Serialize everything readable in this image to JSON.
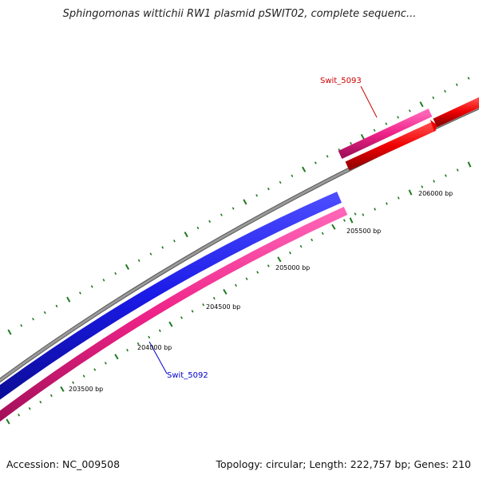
{
  "title": "Sphingomonas wittichii RW1 plasmid pSWIT02, complete sequenc...",
  "footer": {
    "accession": "Accession: NC_009508",
    "summary": "Topology: circular; Length: 222,757 bp; Genes: 210"
  },
  "colors": {
    "backbone": "#888888",
    "tick": "#1f7a1f",
    "gene_forward": "#ee2288",
    "gene_reverse": "#1a1ae6",
    "gene_red": "#ee0000",
    "label_blue": "#0000cc",
    "label_red": "#cc0000"
  },
  "scale_labels": [
    "203500 bp",
    "204000 bp",
    "204500 bp",
    "205000 bp",
    "205500 bp",
    "206000 bp"
  ],
  "genes": [
    {
      "name": "Swit_5092",
      "color": "blue"
    },
    {
      "name": "Swit_5093",
      "color": "red"
    }
  ]
}
